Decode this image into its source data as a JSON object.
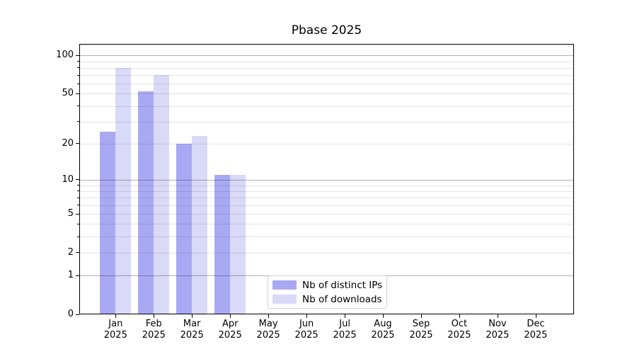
{
  "chart_data": {
    "type": "bar",
    "title": "Pbase 2025",
    "categories": [
      "Jan",
      "Feb",
      "Mar",
      "Apr",
      "May",
      "Jun",
      "Jul",
      "Aug",
      "Sep",
      "Oct",
      "Nov",
      "Dec"
    ],
    "category_year": "2025",
    "series": [
      {
        "name": "Nb of distinct IPs",
        "color": "#a9a9f3",
        "values": [
          25,
          52,
          20,
          11,
          0,
          0,
          0,
          0,
          0,
          0,
          0,
          0
        ]
      },
      {
        "name": "Nb of downloads",
        "color": "#d9d9f8",
        "values": [
          80,
          70,
          23,
          11,
          0,
          0,
          0,
          0,
          0,
          0,
          0,
          0
        ]
      }
    ],
    "xlabel": "",
    "ylabel": "",
    "y_scale": "log1p",
    "y_axis": {
      "tick_labels": [
        "0",
        "1",
        "2",
        "5",
        "10",
        "20",
        "50",
        "100"
      ],
      "tick_values": [
        0,
        1,
        2,
        5,
        10,
        20,
        50,
        100
      ],
      "major_gridlines": [
        1,
        10,
        100
      ],
      "minor_gridlines": [
        2,
        3,
        4,
        5,
        6,
        7,
        8,
        9,
        20,
        30,
        40,
        50,
        60,
        70,
        80,
        90,
        120
      ],
      "minor_tick_values": [
        3,
        4,
        6,
        7,
        8,
        9,
        30,
        40,
        60,
        70,
        80,
        90
      ],
      "ylim": [
        0,
        123
      ]
    },
    "grid": "horizontal-only",
    "legend": {
      "position": "lower-center",
      "entries": [
        "Nb of distinct IPs",
        "Nb of downloads"
      ]
    },
    "colors": {
      "bar_distinct_ips": "#a9a9f3",
      "bar_downloads": "#d9d9f8",
      "major_grid": "rgba(0,0,0,0.30)",
      "minor_grid": "rgba(0,0,0,0.10)",
      "spine": "#000000",
      "text": "#000000",
      "legend_border": "#d4d4d4"
    }
  }
}
